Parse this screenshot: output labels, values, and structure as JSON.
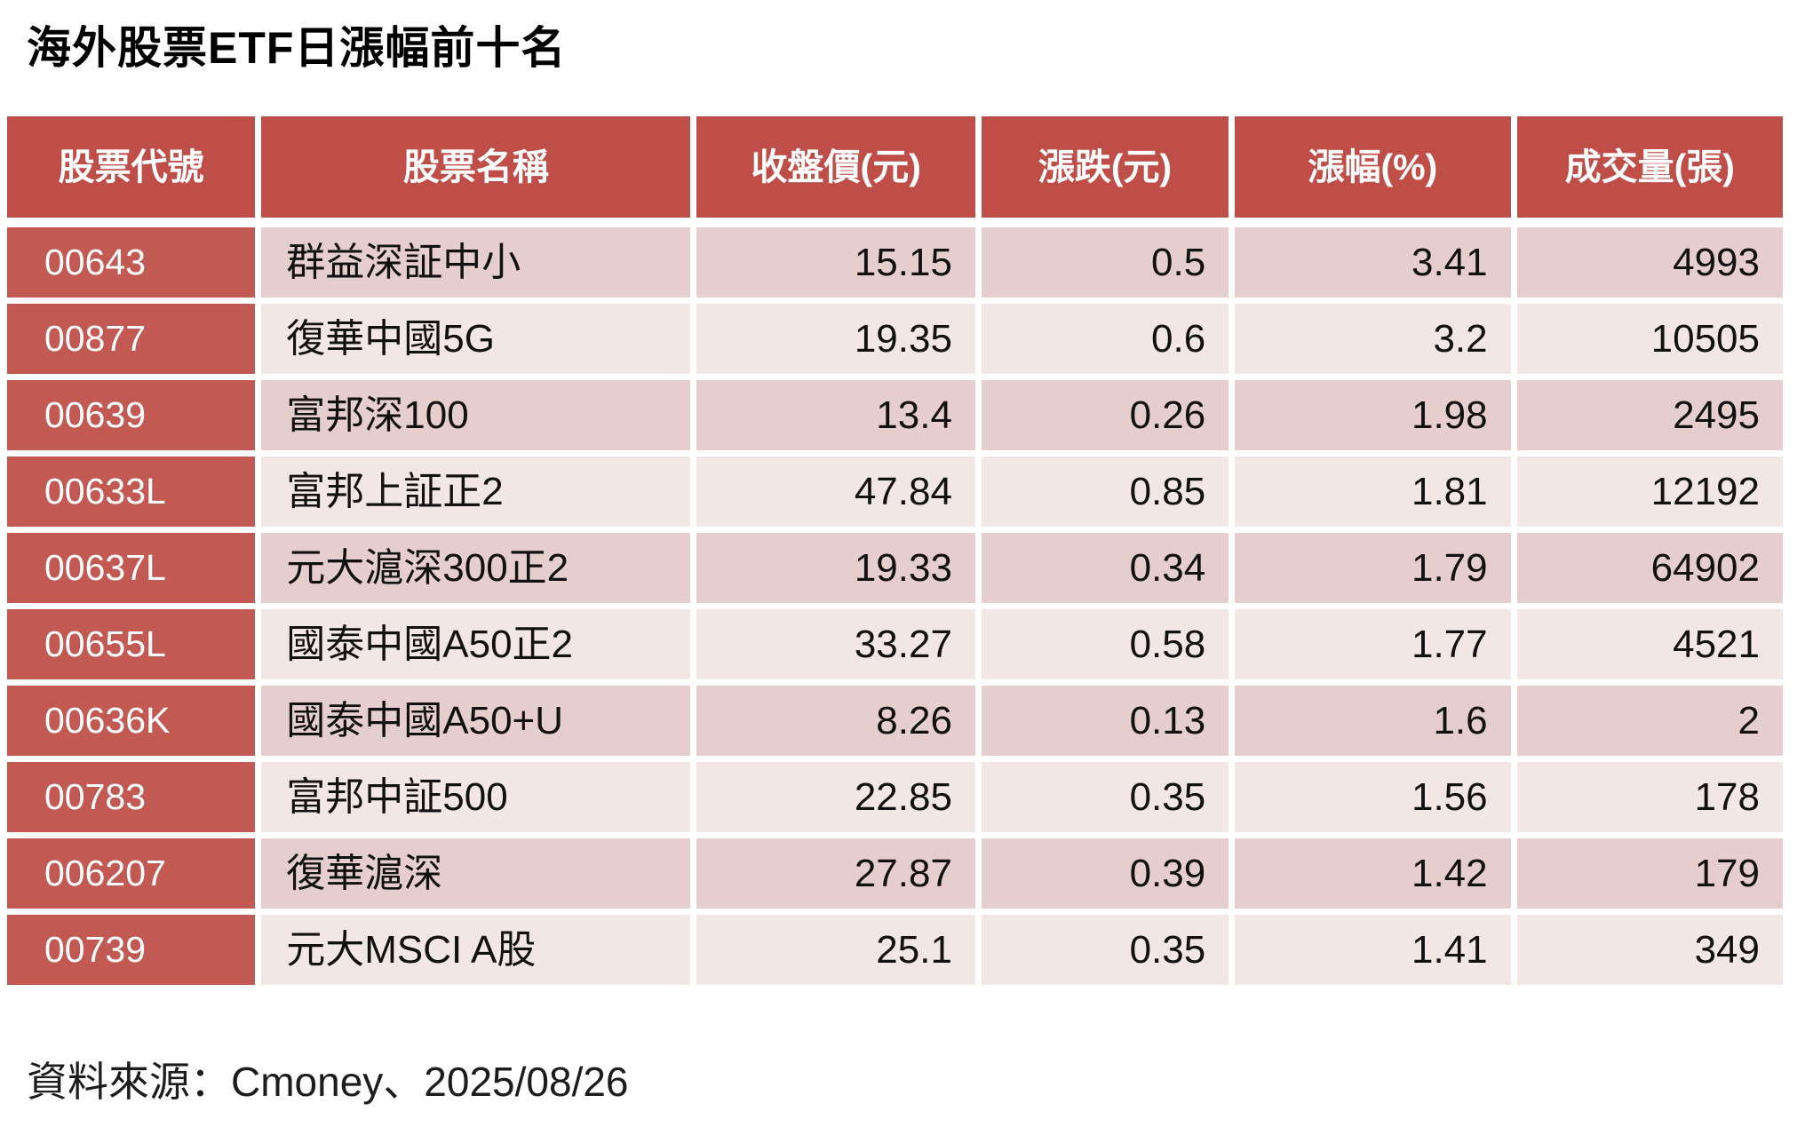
{
  "title": "海外股票ETF日漲幅前十名",
  "source_note": "資料來源：Cmoney、2025/08/26",
  "colors": {
    "header_bg": "#BF4E49",
    "code_bg": "#C25953",
    "row_odd_bg": "#E5CECD",
    "row_even_bg": "#F2E7E5",
    "header_text": "#FFFFFF",
    "body_text": "#111111"
  },
  "table": {
    "columns": [
      "股票代號",
      "股票名稱",
      "收盤價(元)",
      "漲跌(元)",
      "漲幅(%)",
      "成交量(張)"
    ],
    "rows": [
      {
        "code": "00643",
        "name": "群益深証中小",
        "close": "15.15",
        "change": "0.5",
        "pct": "3.41",
        "volume": "4993"
      },
      {
        "code": "00877",
        "name": "復華中國5G",
        "close": "19.35",
        "change": "0.6",
        "pct": "3.2",
        "volume": "10505"
      },
      {
        "code": "00639",
        "name": "富邦深100",
        "close": "13.4",
        "change": "0.26",
        "pct": "1.98",
        "volume": "2495"
      },
      {
        "code": "00633L",
        "name": "富邦上証正2",
        "close": "47.84",
        "change": "0.85",
        "pct": "1.81",
        "volume": "12192"
      },
      {
        "code": "00637L",
        "name": "元大滬深300正2",
        "close": "19.33",
        "change": "0.34",
        "pct": "1.79",
        "volume": "64902"
      },
      {
        "code": "00655L",
        "name": "國泰中國A50正2",
        "close": "33.27",
        "change": "0.58",
        "pct": "1.77",
        "volume": "4521"
      },
      {
        "code": "00636K",
        "name": "國泰中國A50+U",
        "close": "8.26",
        "change": "0.13",
        "pct": "1.6",
        "volume": "2"
      },
      {
        "code": "00783",
        "name": "富邦中証500",
        "close": "22.85",
        "change": "0.35",
        "pct": "1.56",
        "volume": "178"
      },
      {
        "code": "006207",
        "name": "復華滬深",
        "close": "27.87",
        "change": "0.39",
        "pct": "1.42",
        "volume": "179"
      },
      {
        "code": "00739",
        "name": "元大MSCI A股",
        "close": "25.1",
        "change": "0.35",
        "pct": "1.41",
        "volume": "349"
      }
    ]
  },
  "chart_data": {
    "type": "table",
    "title": "海外股票ETF日漲幅前十名",
    "columns": [
      "股票代號",
      "股票名稱",
      "收盤價(元)",
      "漲跌(元)",
      "漲幅(%)",
      "成交量(張)"
    ],
    "rows": [
      [
        "00643",
        "群益深証中小",
        15.15,
        0.5,
        3.41,
        4993
      ],
      [
        "00877",
        "復華中國5G",
        19.35,
        0.6,
        3.2,
        10505
      ],
      [
        "00639",
        "富邦深100",
        13.4,
        0.26,
        1.98,
        2495
      ],
      [
        "00633L",
        "富邦上証正2",
        47.84,
        0.85,
        1.81,
        12192
      ],
      [
        "00637L",
        "元大滬深300正2",
        19.33,
        0.34,
        1.79,
        64902
      ],
      [
        "00655L",
        "國泰中國A50正2",
        33.27,
        0.58,
        1.77,
        4521
      ],
      [
        "00636K",
        "國泰中國A50+U",
        8.26,
        0.13,
        1.6,
        2
      ],
      [
        "00783",
        "富邦中証500",
        22.85,
        0.35,
        1.56,
        178
      ],
      [
        "006207",
        "復華滬深",
        27.87,
        0.39,
        1.42,
        179
      ],
      [
        "00739",
        "元大MSCI A股",
        25.1,
        0.35,
        1.41,
        349
      ]
    ],
    "source": "資料來源：Cmoney、2025/08/26"
  }
}
